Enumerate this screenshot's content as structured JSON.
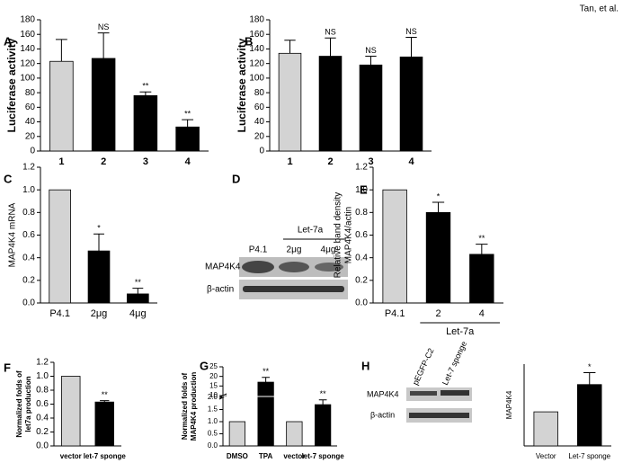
{
  "header": "Tan, et al.",
  "panel_labels": [
    "A",
    "B",
    "C",
    "D",
    "E",
    "F",
    "G",
    "H"
  ],
  "chart_data": [
    {
      "type": "bar",
      "ylabel": [
        "Luciferase activity"
      ],
      "categories": [
        "1",
        "2",
        "3",
        "4"
      ],
      "values": [
        123,
        127,
        76,
        33
      ],
      "errors": [
        30,
        35,
        5,
        10
      ],
      "annotations": [
        null,
        "NS",
        "**",
        "**"
      ],
      "colors": [
        "#d3d3d3",
        "#000000",
        "#000000",
        "#000000"
      ],
      "ylim": [
        0,
        180
      ],
      "yticks": [
        0,
        20,
        40,
        60,
        80,
        100,
        120,
        140,
        160,
        180
      ]
    },
    {
      "type": "bar",
      "ylabel": [
        "Luciferase activity"
      ],
      "categories": [
        "1",
        "2",
        "3",
        "4"
      ],
      "values": [
        134,
        130,
        118,
        129
      ],
      "errors": [
        18,
        25,
        12,
        27
      ],
      "annotations": [
        null,
        "NS",
        "NS",
        "NS"
      ],
      "colors": [
        "#d3d3d3",
        "#000000",
        "#000000",
        "#000000"
      ],
      "ylim": [
        0,
        180
      ],
      "yticks": [
        0,
        20,
        40,
        60,
        80,
        100,
        120,
        140,
        160,
        180
      ]
    },
    {
      "type": "bar",
      "ylabel": [
        "MAP4K4 mRNA"
      ],
      "categories": [
        "P4.1",
        "2μg",
        "4μg"
      ],
      "values": [
        1.0,
        0.46,
        0.08
      ],
      "errors": [
        0,
        0.15,
        0.05
      ],
      "annotations": [
        null,
        "*",
        "**"
      ],
      "colors": [
        "#d3d3d3",
        "#000000",
        "#000000"
      ],
      "ylim": [
        0,
        1.2
      ],
      "yticks": [
        {
          "value": 0,
          "label": "0.0"
        },
        {
          "value": 0.2,
          "label": "0.2"
        },
        {
          "value": 0.4,
          "label": "0.4"
        },
        {
          "value": 0.6,
          "label": "0.6"
        },
        {
          "value": 0.8,
          "label": "0.8"
        },
        {
          "value": 1.0,
          "label": "1.0"
        },
        {
          "value": 1.2,
          "label": "1.2"
        }
      ]
    },
    {
      "type": "bar",
      "ylabel": [
        "Relative band density",
        "MAP4K4/actin"
      ],
      "categories": [
        "P4.1",
        "2",
        "4"
      ],
      "group_label": "Let-7a",
      "values": [
        1.0,
        0.8,
        0.43
      ],
      "errors": [
        0,
        0.09,
        0.09
      ],
      "annotations": [
        null,
        "*",
        "**"
      ],
      "colors": [
        "#d3d3d3",
        "#000000",
        "#000000"
      ],
      "ylim": [
        0,
        1.2
      ],
      "yticks": [
        {
          "value": 0,
          "label": "0.0"
        },
        {
          "value": 0.2,
          "label": "0.2"
        },
        {
          "value": 0.4,
          "label": "0.4"
        },
        {
          "value": 0.6,
          "label": "0.6"
        },
        {
          "value": 0.8,
          "label": "0.8"
        },
        {
          "value": 1.0,
          "label": "1.0"
        },
        {
          "value": 1.2,
          "label": "1.2"
        }
      ]
    },
    {
      "type": "bar",
      "ylabel": [
        "Normalized folds of",
        "let7a production"
      ],
      "categories": [
        "vector",
        "let-7 sponge"
      ],
      "values": [
        1.0,
        0.63
      ],
      "errors": [
        0,
        0.02
      ],
      "annotations": [
        null,
        "**"
      ],
      "colors": [
        "#d3d3d3",
        "#000000"
      ],
      "ylim": [
        0,
        1.2
      ],
      "yticks": [
        {
          "value": 0,
          "label": "0.0"
        },
        {
          "value": 0.2,
          "label": "0.2"
        },
        {
          "value": 0.4,
          "label": "0.4"
        },
        {
          "value": 0.6,
          "label": "0.6"
        },
        {
          "value": 0.8,
          "label": "0.8"
        },
        {
          "value": 1.0,
          "label": "1.0"
        },
        {
          "value": 1.2,
          "label": "1.2"
        }
      ]
    },
    {
      "type": "bar",
      "ylabel": [
        "Normalized folds of",
        "MAP4K4 production"
      ],
      "categories": [
        "DMSO",
        "TPA",
        "vector",
        "let-7 sponge"
      ],
      "values": [
        1,
        17,
        1,
        1.7
      ],
      "errors": [
        0,
        2.5,
        0,
        0.2
      ],
      "annotations": [
        null,
        "**",
        null,
        "**"
      ],
      "colors": [
        "#d3d3d3",
        "#000000",
        "#d3d3d3",
        "#000000"
      ],
      "ylim": [
        0,
        25
      ],
      "break": [
        2,
        10
      ],
      "yticks": [
        {
          "value": 0,
          "label": "0.0"
        },
        {
          "value": 0.5,
          "label": "0.5"
        },
        {
          "value": 1.0,
          "label": "1.0"
        },
        {
          "value": 1.5,
          "label": "1.5"
        },
        {
          "value": 2.0,
          "label": "2.0"
        },
        10,
        15,
        20,
        25
      ]
    },
    {
      "type": "bar",
      "ylabel": [
        "MAP4K4"
      ],
      "categories": [
        "Vector",
        "Let-7 sponge"
      ],
      "values": [
        1,
        1.8
      ],
      "errors": [
        0,
        0.35
      ],
      "annotations": [
        null,
        "*"
      ],
      "colors": [
        "#d3d3d3",
        "#000000"
      ],
      "ylim": [
        0,
        2.4
      ]
    }
  ],
  "blot_D": {
    "treatment": "Let-7a",
    "lanes": [
      "P4.1",
      "2μg",
      "4μg"
    ],
    "rows": [
      "MAP4K4",
      "β-actin"
    ]
  },
  "blot_H": {
    "lanes": [
      "pEGFP-C2",
      "Let-7 sponge"
    ],
    "rows": [
      "MAP4K4",
      "β-actin"
    ]
  }
}
